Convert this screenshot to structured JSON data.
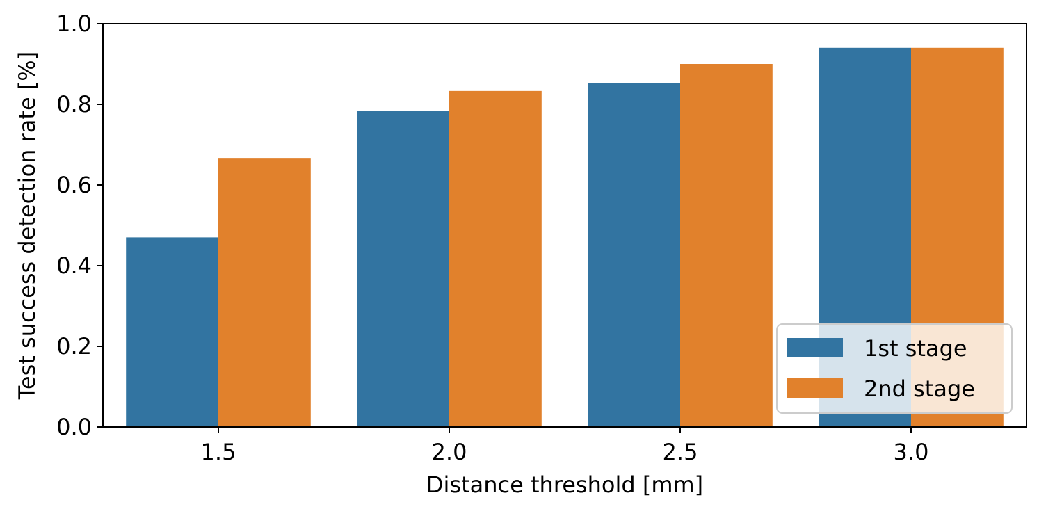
{
  "chart_data": {
    "type": "bar",
    "title": "",
    "xlabel": "Distance threshold [mm]",
    "ylabel": "Test success detection rate [%]",
    "categories": [
      "1.5",
      "2.0",
      "2.5",
      "3.0"
    ],
    "series": [
      {
        "name": "1st stage",
        "color": "#3274a1",
        "values": [
          0.47,
          0.783,
          0.852,
          0.94
        ]
      },
      {
        "name": "2nd stage",
        "color": "#e1812c",
        "values": [
          0.667,
          0.833,
          0.9,
          0.94
        ]
      }
    ],
    "ylim": [
      0,
      1.0
    ],
    "yticks": [
      "0.0",
      "0.2",
      "0.4",
      "0.6",
      "0.8",
      "1.0"
    ],
    "grid": false,
    "legend_position": "lower-right"
  }
}
